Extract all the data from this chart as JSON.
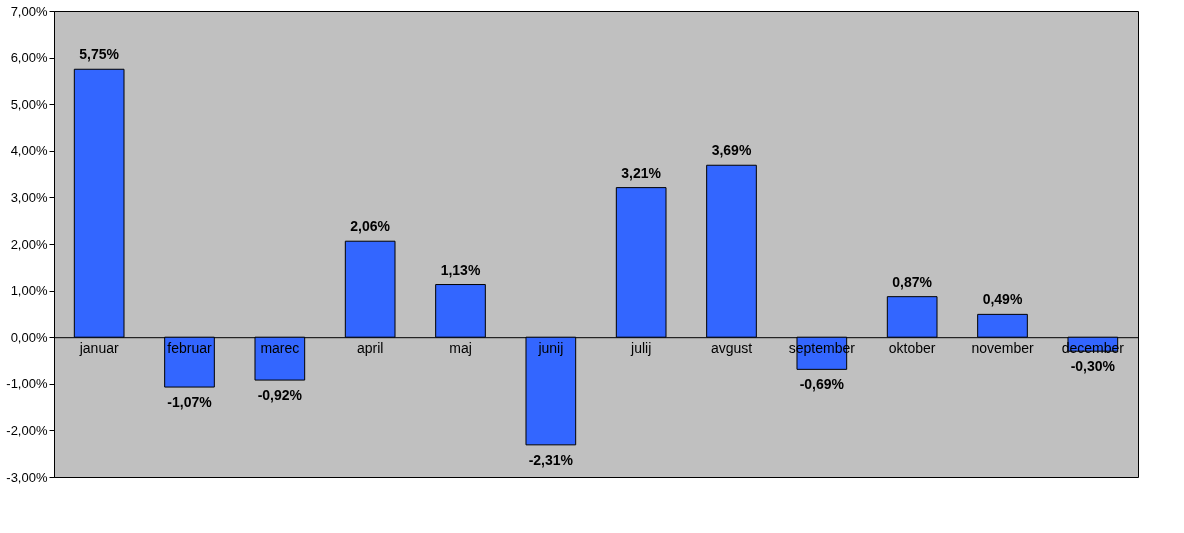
{
  "chart_data": {
    "type": "bar",
    "categories": [
      "januar",
      "februar",
      "marec",
      "april",
      "maj",
      "junij",
      "julij",
      "avgust",
      "september",
      "oktober",
      "november",
      "december"
    ],
    "values": [
      5.75,
      -1.07,
      -0.92,
      2.06,
      1.13,
      -2.31,
      3.21,
      3.69,
      -0.69,
      0.87,
      0.49,
      -0.3
    ],
    "value_labels": [
      "5,75%",
      "-1,07%",
      "-0,92%",
      "2,06%",
      "1,13%",
      "-2,31%",
      "3,21%",
      "3,69%",
      "-0,69%",
      "0,87%",
      "0,49%",
      "-0,30%"
    ],
    "color": "#3366ff",
    "ylim": [
      -3,
      7
    ],
    "yticks": [
      {
        "value": -3,
        "label": "-3,00%"
      },
      {
        "value": -2,
        "label": "-2,00%"
      },
      {
        "value": -1,
        "label": "-1,00%"
      },
      {
        "value": 0,
        "label": "0,00%"
      },
      {
        "value": 1,
        "label": "1,00%"
      },
      {
        "value": 2,
        "label": "2,00%"
      },
      {
        "value": 3,
        "label": "3,00%"
      },
      {
        "value": 4,
        "label": "4,00%"
      },
      {
        "value": 5,
        "label": "5,00%"
      },
      {
        "value": 6,
        "label": "6,00%"
      },
      {
        "value": 7,
        "label": "7,00%"
      }
    ],
    "grid": false
  }
}
